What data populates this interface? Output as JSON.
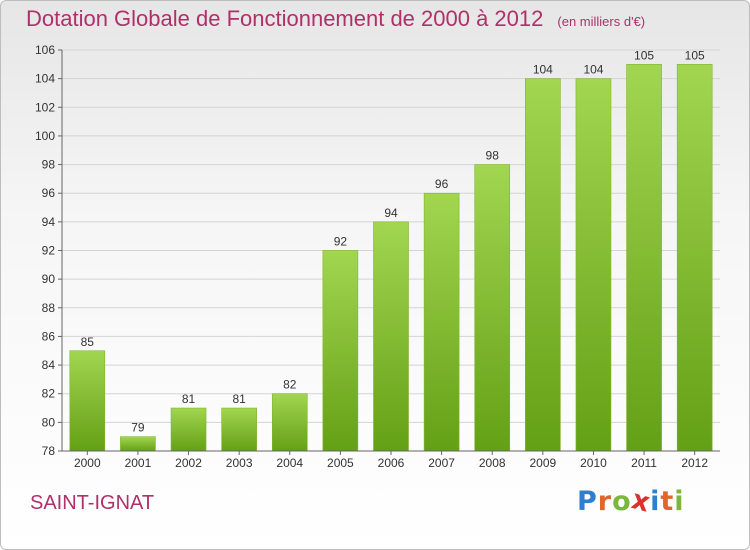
{
  "header": {
    "title": "Dotation Globale de Fonctionnement de 2000 à 2012",
    "subtitle": "(en milliers d'€)"
  },
  "footer": {
    "town": "SAINT-IGNAT",
    "logo_letters": [
      "P",
      "r",
      "o",
      "x",
      "i",
      "t",
      "i"
    ],
    "logo_colors": [
      "#2f7fd1",
      "#e0662a",
      "#7ab73a",
      "#d8342d",
      "#2f7fd1",
      "#e0662a",
      "#7ab73a"
    ]
  },
  "colors": {
    "bar_top": "#a2d650",
    "bar_bottom": "#64a016",
    "grid": "#d4d4d4",
    "axis": "#666666",
    "title": "#b0306a"
  },
  "chart_data": {
    "type": "bar",
    "categories": [
      "2000",
      "2001",
      "2002",
      "2003",
      "2004",
      "2005",
      "2006",
      "2007",
      "2008",
      "2009",
      "2010",
      "2011",
      "2012"
    ],
    "values": [
      85,
      79,
      81,
      81,
      82,
      92,
      94,
      96,
      98,
      104,
      104,
      105,
      105
    ],
    "ylim": [
      78,
      106
    ],
    "yticks": [
      78,
      80,
      82,
      84,
      86,
      88,
      90,
      92,
      94,
      96,
      98,
      100,
      102,
      104,
      106
    ],
    "grid": true,
    "legend": "none"
  }
}
